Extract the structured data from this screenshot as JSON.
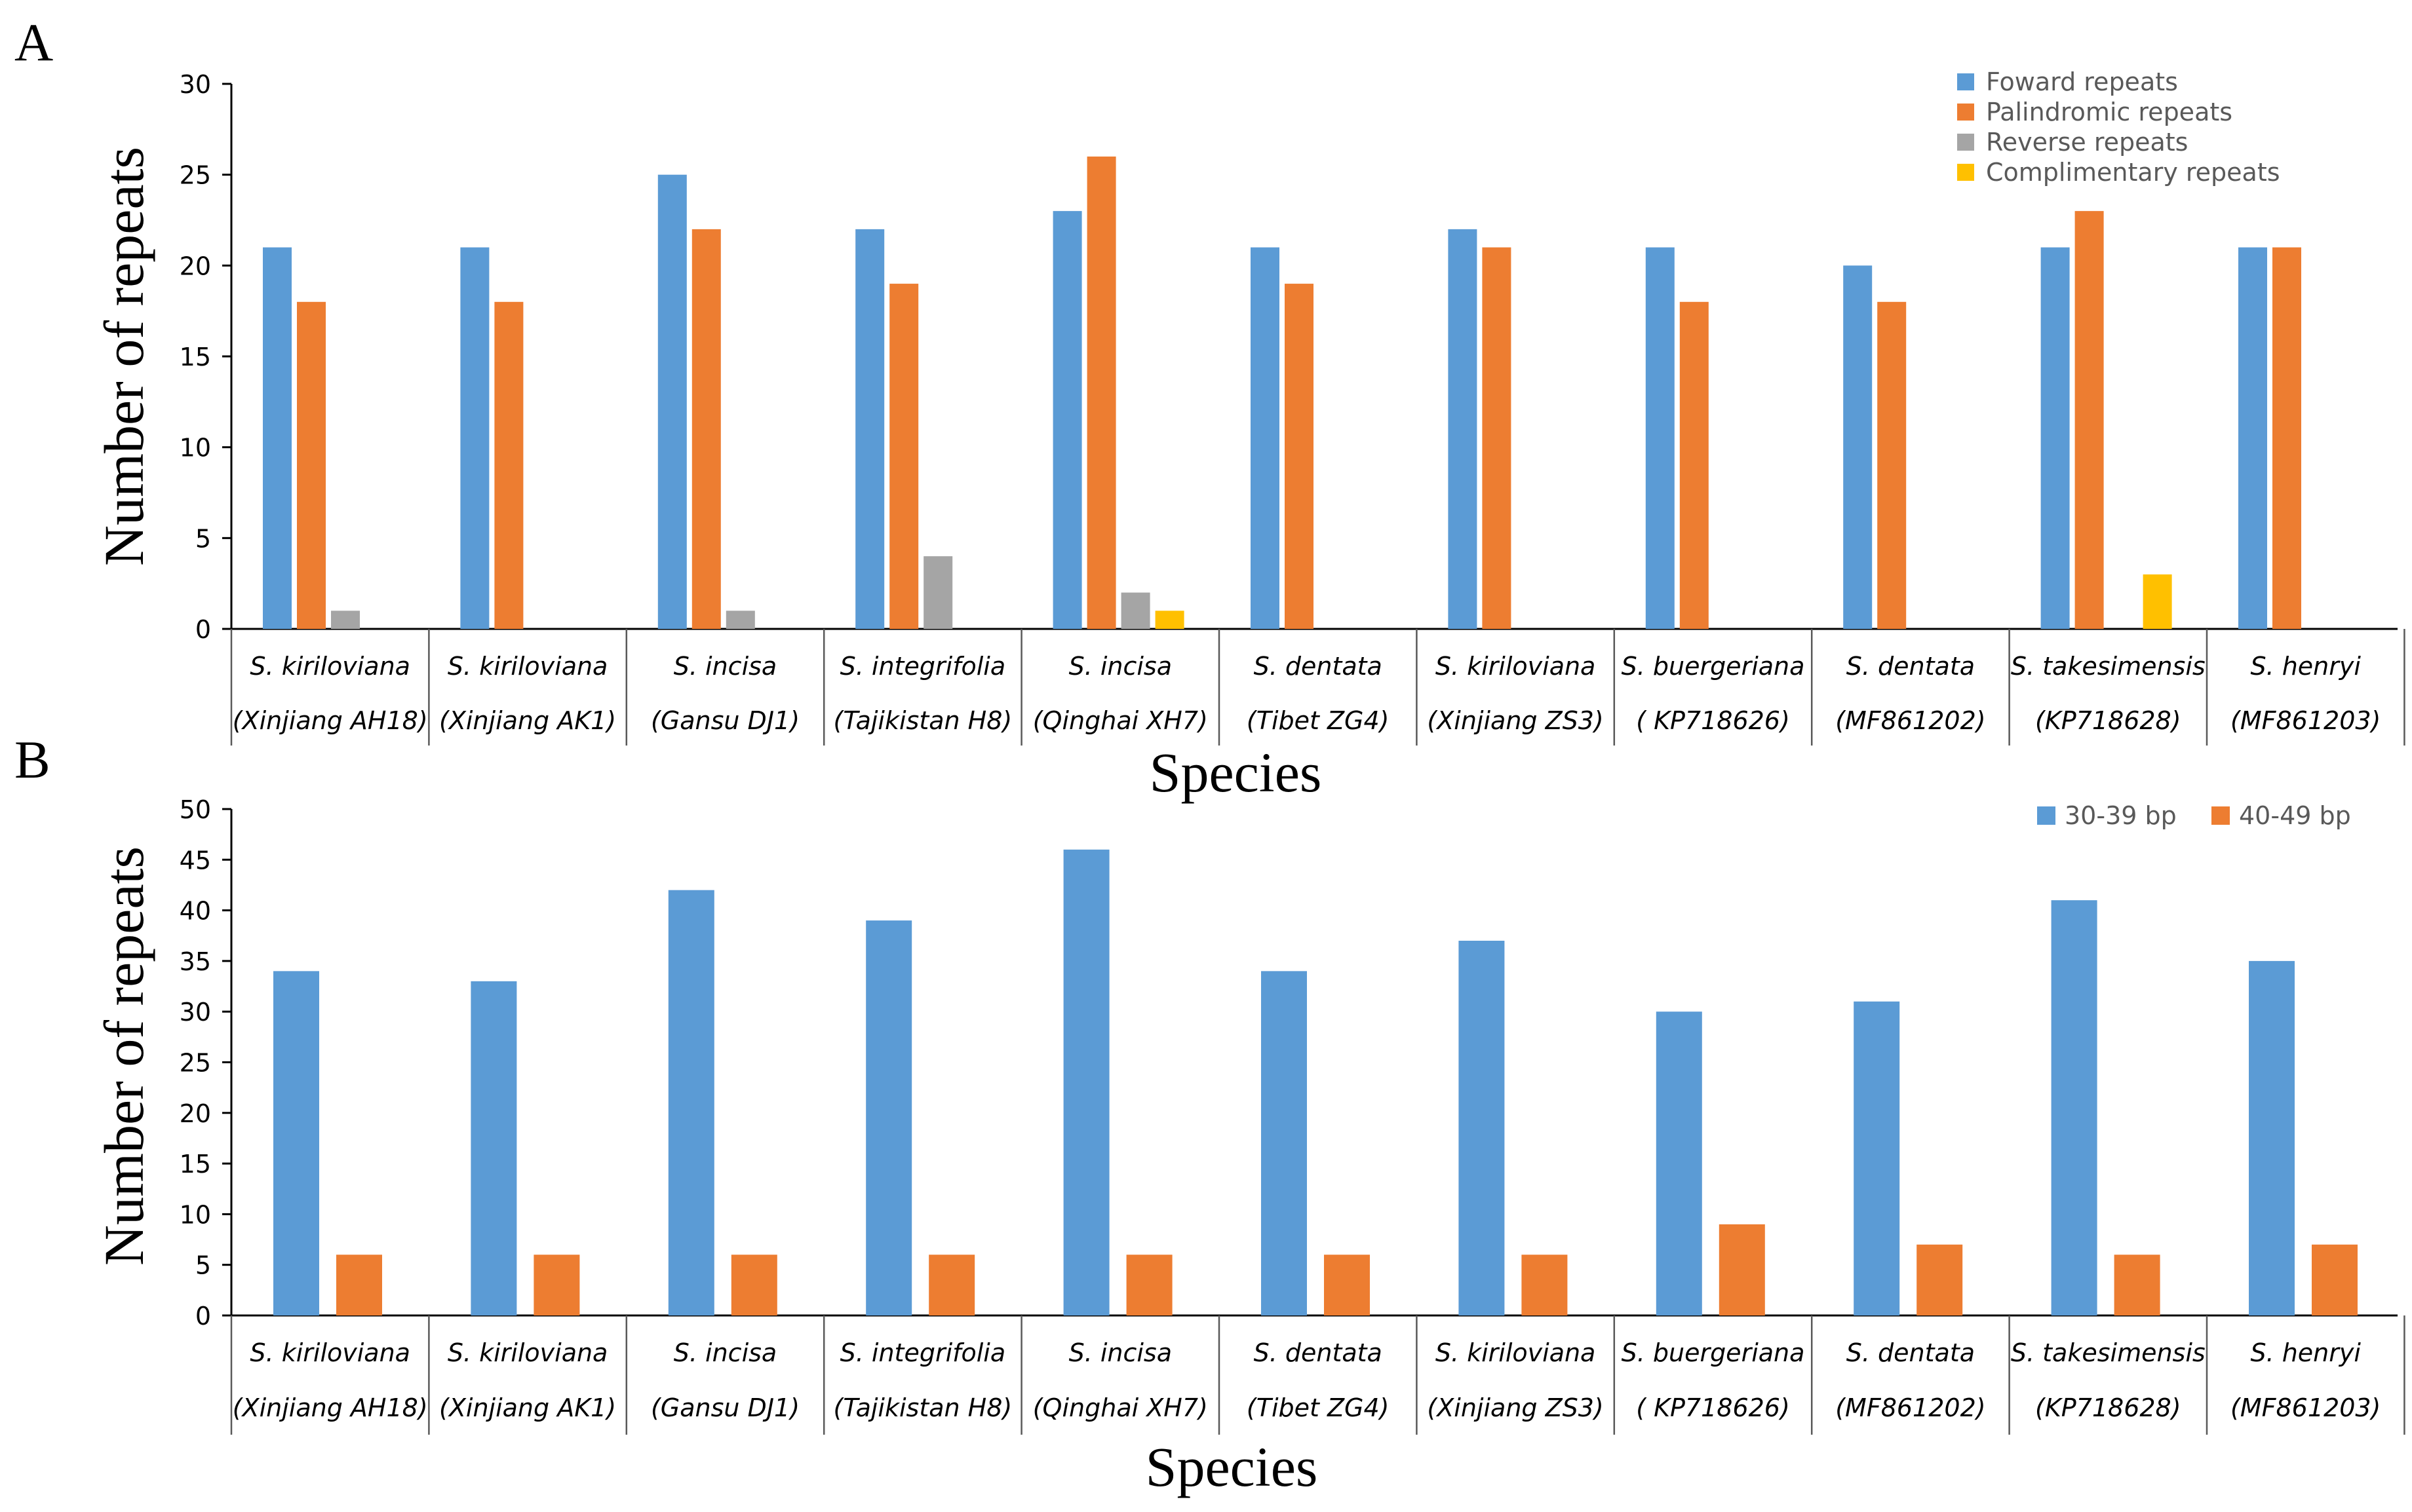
{
  "chart_data": [
    {
      "panel": "A",
      "type": "bar",
      "categories": [
        [
          "S. kiriloviana",
          "(Xinjiang AH18)"
        ],
        [
          "S. kiriloviana",
          "(Xinjiang AK1)"
        ],
        [
          "S. incisa",
          "(Gansu DJ1)"
        ],
        [
          "S. integrifolia",
          "(Tajikistan H8)"
        ],
        [
          "S. incisa",
          "(Qinghai XH7)"
        ],
        [
          "S. dentata",
          "(Tibet ZG4)"
        ],
        [
          "S. kiriloviana",
          "(Xinjiang ZS3)"
        ],
        [
          "S. buergeriana",
          "( KP718626)"
        ],
        [
          "S. dentata",
          "(MF861202)"
        ],
        [
          "S. takesimensis",
          "(KP718628)"
        ],
        [
          "S. henryi",
          "(MF861203)"
        ]
      ],
      "series": [
        {
          "name": "Foward repeats",
          "color": "#5B9BD5",
          "values": [
            21,
            21,
            25,
            22,
            23,
            21,
            22,
            21,
            20,
            21,
            21
          ]
        },
        {
          "name": "Palindromic repeats",
          "color": "#ED7D31",
          "values": [
            18,
            18,
            22,
            19,
            26,
            19,
            21,
            18,
            18,
            23,
            21
          ]
        },
        {
          "name": "Reverse repeats",
          "color": "#A5A5A5",
          "values": [
            1,
            0,
            1,
            4,
            2,
            0,
            0,
            0,
            0,
            0,
            0
          ]
        },
        {
          "name": "Complimentary repeats",
          "color": "#FFC000",
          "values": [
            0,
            0,
            0,
            0,
            1,
            0,
            0,
            0,
            0,
            3,
            0
          ]
        }
      ],
      "xlabel": "Species",
      "ylabel": "Number of repeats",
      "ylim": [
        0,
        30
      ],
      "yticks": [
        0,
        5,
        10,
        15,
        20,
        25,
        30
      ],
      "legend": "top-right, stacked vertically",
      "grid": false
    },
    {
      "panel": "B",
      "type": "bar",
      "categories": [
        [
          "S. kiriloviana",
          "(Xinjiang AH18)"
        ],
        [
          "S. kiriloviana",
          "(Xinjiang AK1)"
        ],
        [
          "S. incisa",
          "(Gansu DJ1)"
        ],
        [
          "S. integrifolia",
          "(Tajikistan H8)"
        ],
        [
          "S. incisa",
          "(Qinghai XH7)"
        ],
        [
          "S. dentata",
          "(Tibet ZG4)"
        ],
        [
          "S. kiriloviana",
          "(Xinjiang ZS3)"
        ],
        [
          "S. buergeriana",
          "( KP718626)"
        ],
        [
          "S. dentata",
          "(MF861202)"
        ],
        [
          "S. takesimensis",
          "(KP718628)"
        ],
        [
          "S. henryi",
          "(MF861203)"
        ]
      ],
      "series": [
        {
          "name": "30-39 bp",
          "color": "#5B9BD5",
          "values": [
            34,
            33,
            42,
            39,
            46,
            34,
            37,
            30,
            31,
            41,
            35
          ]
        },
        {
          "name": "40-49 bp",
          "color": "#ED7D31",
          "values": [
            6,
            6,
            6,
            6,
            6,
            6,
            6,
            9,
            7,
            6,
            7
          ]
        }
      ],
      "xlabel": "Species",
      "ylabel": "Number of repeats",
      "ylim": [
        0,
        50
      ],
      "yticks": [
        0,
        5,
        10,
        15,
        20,
        25,
        30,
        35,
        40,
        45,
        50
      ],
      "legend": "top-right, horizontal",
      "grid": false
    }
  ]
}
